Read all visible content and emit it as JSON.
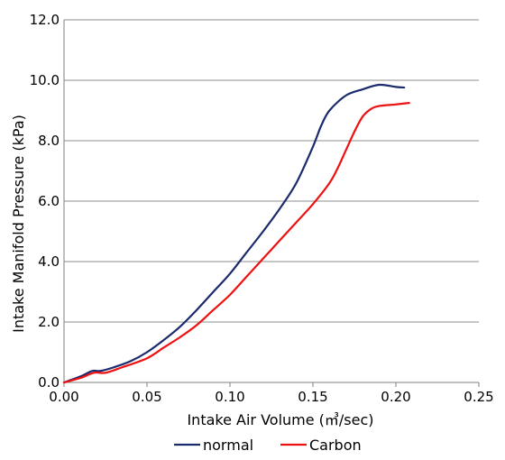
{
  "chart_data": {
    "type": "line",
    "title": "",
    "xlabel": "Intake Air Volume (㎥/sec)",
    "ylabel": "Intake Manifold Pressure (kPa)",
    "xlim": [
      0,
      0.25
    ],
    "ylim": [
      0,
      12
    ],
    "x_ticks": [
      "0.00",
      "0.05",
      "0.10",
      "0.15",
      "0.20",
      "0.25"
    ],
    "y_ticks": [
      "0.0",
      "2.0",
      "4.0",
      "6.0",
      "8.0",
      "10.0",
      "12.0"
    ],
    "grid": "horizontal",
    "legend_position": "bottom",
    "series": [
      {
        "name": "normal",
        "color": "#1a2a6c",
        "points": [
          [
            0.0,
            0.0
          ],
          [
            0.01,
            0.2
          ],
          [
            0.017,
            0.38
          ],
          [
            0.022,
            0.38
          ],
          [
            0.03,
            0.5
          ],
          [
            0.04,
            0.7
          ],
          [
            0.05,
            1.0
          ],
          [
            0.06,
            1.4
          ],
          [
            0.07,
            1.85
          ],
          [
            0.08,
            2.4
          ],
          [
            0.09,
            3.0
          ],
          [
            0.1,
            3.6
          ],
          [
            0.11,
            4.3
          ],
          [
            0.12,
            5.0
          ],
          [
            0.13,
            5.75
          ],
          [
            0.14,
            6.6
          ],
          [
            0.15,
            7.8
          ],
          [
            0.155,
            8.5
          ],
          [
            0.16,
            9.0
          ],
          [
            0.17,
            9.5
          ],
          [
            0.18,
            9.7
          ],
          [
            0.19,
            9.85
          ],
          [
            0.2,
            9.78
          ],
          [
            0.205,
            9.76
          ]
        ]
      },
      {
        "name": "Carbon",
        "color": "#ee1111",
        "points": [
          [
            0.0,
            0.0
          ],
          [
            0.01,
            0.15
          ],
          [
            0.018,
            0.32
          ],
          [
            0.025,
            0.32
          ],
          [
            0.035,
            0.5
          ],
          [
            0.05,
            0.8
          ],
          [
            0.06,
            1.15
          ],
          [
            0.07,
            1.5
          ],
          [
            0.08,
            1.9
          ],
          [
            0.09,
            2.4
          ],
          [
            0.1,
            2.9
          ],
          [
            0.11,
            3.5
          ],
          [
            0.12,
            4.1
          ],
          [
            0.13,
            4.7
          ],
          [
            0.14,
            5.3
          ],
          [
            0.15,
            5.9
          ],
          [
            0.16,
            6.6
          ],
          [
            0.165,
            7.1
          ],
          [
            0.17,
            7.7
          ],
          [
            0.175,
            8.3
          ],
          [
            0.18,
            8.8
          ],
          [
            0.185,
            9.05
          ],
          [
            0.19,
            9.15
          ],
          [
            0.2,
            9.2
          ],
          [
            0.208,
            9.25
          ]
        ]
      }
    ]
  }
}
